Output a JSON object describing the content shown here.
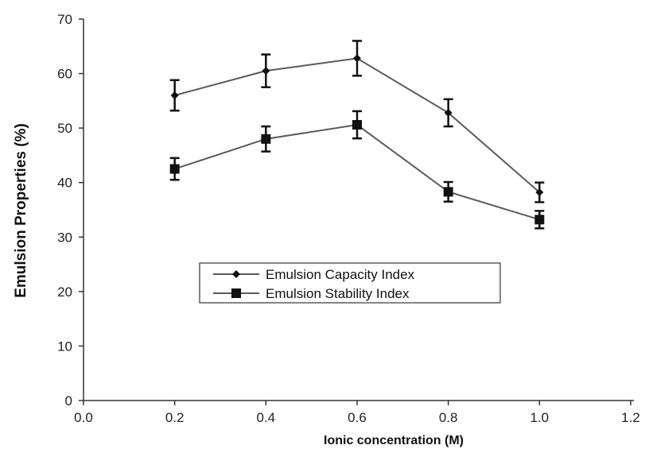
{
  "chart_data": {
    "type": "line",
    "title": "",
    "xlabel": "Ionic concentration (M)",
    "ylabel": "Emulsion  Properties (%)",
    "xlim": [
      0.0,
      1.2
    ],
    "ylim": [
      0,
      70
    ],
    "xticks": [
      "0.0",
      "0.2",
      "0.4",
      "0.6",
      "0.8",
      "1.0",
      "1.2"
    ],
    "yticks": [
      "0",
      "10",
      "20",
      "30",
      "40",
      "50",
      "60",
      "70"
    ],
    "grid": false,
    "legend_position": "center",
    "series": [
      {
        "name": "Emulsion Capacity Index",
        "marker": "diamond",
        "color": "#5a5a5a",
        "x": [
          0.2,
          0.4,
          0.6,
          0.8,
          1.0
        ],
        "y": [
          56.0,
          60.5,
          62.8,
          52.8,
          38.2
        ],
        "err": [
          2.8,
          3.0,
          3.2,
          2.5,
          1.8
        ]
      },
      {
        "name": "Emulsion Stability Index",
        "marker": "square",
        "color": "#5a5a5a",
        "x": [
          0.2,
          0.4,
          0.6,
          0.8,
          1.0
        ],
        "y": [
          42.5,
          48.0,
          50.6,
          38.3,
          33.2
        ],
        "err": [
          2.0,
          2.3,
          2.5,
          1.8,
          1.6
        ]
      }
    ]
  }
}
